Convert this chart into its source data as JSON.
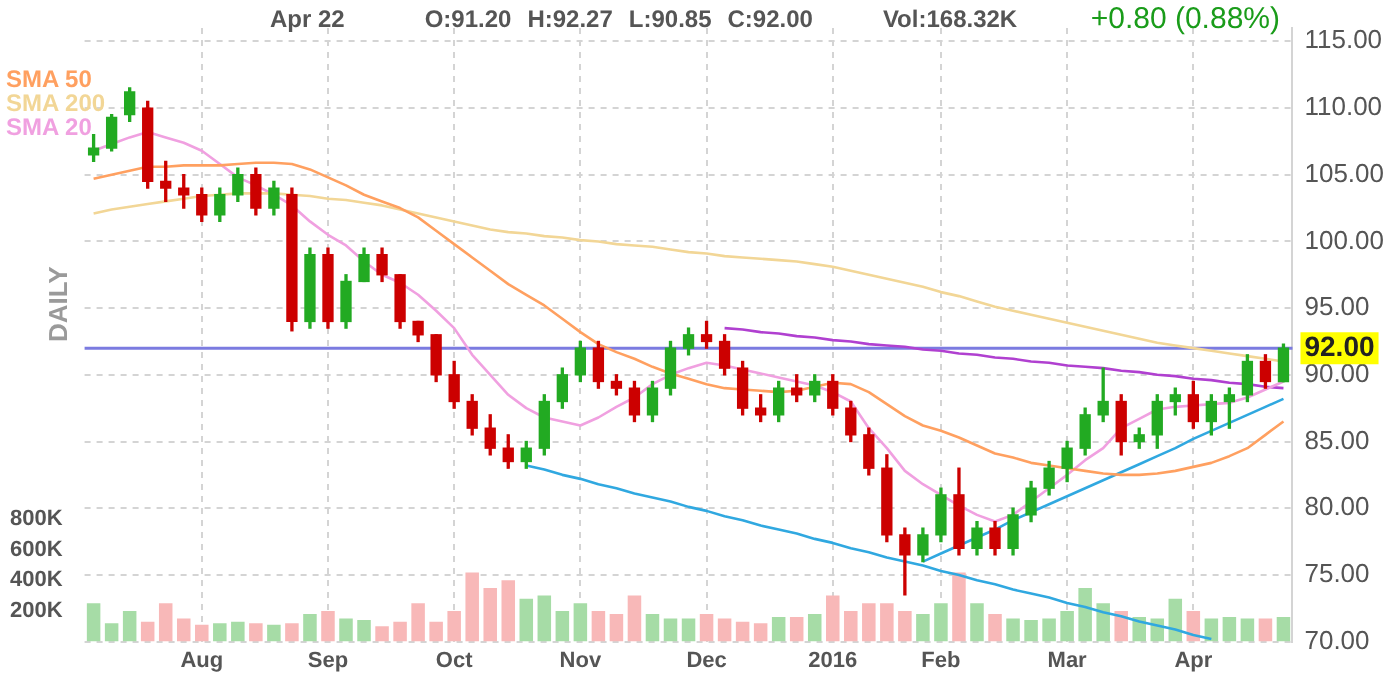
{
  "chart_data": {
    "type": "candlestick",
    "annotations": [
      "Apr 22",
      "O:91.20",
      "H:92.27",
      "L:90.85",
      "C:92.00",
      "Vol:168.32K",
      "+0.80 (0.88%)",
      "DAILY"
    ],
    "categories": [
      null,
      null,
      null,
      null,
      null,
      null,
      "Aug",
      null,
      null,
      null,
      null,
      null,
      null,
      "Sep",
      null,
      null,
      null,
      null,
      null,
      null,
      "Oct",
      null,
      null,
      null,
      null,
      null,
      null,
      "Nov",
      null,
      null,
      null,
      null,
      null,
      null,
      "Dec",
      null,
      null,
      null,
      null,
      null,
      null,
      "2016",
      null,
      null,
      null,
      null,
      null,
      "Feb",
      null,
      null,
      null,
      null,
      null,
      null,
      "Mar",
      null,
      null,
      null,
      null,
      null,
      null,
      "Apr",
      null,
      null,
      null,
      null,
      null
    ],
    "ohlc": [
      [
        106.5,
        108,
        106,
        107
      ],
      [
        107,
        109.5,
        106.8,
        109.3
      ],
      [
        109.5,
        111.5,
        109,
        111.2
      ],
      [
        110,
        110.5,
        104,
        104.5
      ],
      [
        104.5,
        106,
        103,
        104
      ],
      [
        104,
        105,
        102.5,
        103.5
      ],
      [
        103.5,
        104,
        101.5,
        102
      ],
      [
        102,
        104,
        101.5,
        103.5
      ],
      [
        103.5,
        105.5,
        103,
        105
      ],
      [
        105,
        105.5,
        102,
        102.5
      ],
      [
        102.5,
        104.5,
        102,
        104
      ],
      [
        103.5,
        104,
        93.3,
        94
      ],
      [
        94,
        99.5,
        93.5,
        99
      ],
      [
        99,
        99.5,
        93.5,
        94
      ],
      [
        94,
        97.5,
        93.5,
        97
      ],
      [
        97,
        99.5,
        97,
        99
      ],
      [
        99,
        99.5,
        97,
        97.5
      ],
      [
        97.5,
        97.5,
        93.5,
        94
      ],
      [
        94,
        94,
        92.5,
        93
      ],
      [
        93,
        93,
        89.5,
        90
      ],
      [
        90,
        91,
        87.5,
        88
      ],
      [
        88,
        88.5,
        85.5,
        86
      ],
      [
        86,
        87,
        84,
        84.5
      ],
      [
        84.5,
        85.5,
        83,
        83.5
      ],
      [
        83.5,
        85,
        83,
        84.5
      ],
      [
        84.5,
        88.5,
        84,
        88
      ],
      [
        88,
        90.5,
        87.5,
        90
      ],
      [
        90,
        92.5,
        89.5,
        92
      ],
      [
        92,
        92.5,
        89,
        89.5
      ],
      [
        89.5,
        90,
        88.5,
        89
      ],
      [
        89,
        89.5,
        86.5,
        87
      ],
      [
        87,
        89.5,
        86.5,
        89
      ],
      [
        89,
        92.5,
        88.5,
        92
      ],
      [
        92,
        93.5,
        91.5,
        93
      ],
      [
        93,
        94,
        92,
        92.5
      ],
      [
        92.5,
        93,
        90,
        90.5
      ],
      [
        90.5,
        91,
        87,
        87.5
      ],
      [
        87.5,
        88.5,
        86.5,
        87
      ],
      [
        87,
        89.5,
        86.5,
        89
      ],
      [
        89,
        90,
        88,
        88.5
      ],
      [
        88.5,
        90,
        88,
        89.5
      ],
      [
        89.5,
        90,
        87,
        87.5
      ],
      [
        87.5,
        88,
        85,
        85.5
      ],
      [
        85.5,
        86,
        82.5,
        83
      ],
      [
        83,
        84,
        77.5,
        78
      ],
      [
        78,
        78.5,
        73.5,
        76.5
      ],
      [
        76.5,
        78.5,
        76,
        78
      ],
      [
        78,
        81.5,
        77.5,
        81
      ],
      [
        81,
        83,
        76.5,
        77
      ],
      [
        77,
        79,
        76.5,
        78.5
      ],
      [
        78.5,
        79,
        76.5,
        77
      ],
      [
        77,
        80,
        76.5,
        79.5
      ],
      [
        79.5,
        82,
        79,
        81.5
      ],
      [
        81.5,
        83.5,
        81,
        83
      ],
      [
        83,
        85,
        82,
        84.5
      ],
      [
        84.5,
        87.5,
        84,
        87
      ],
      [
        87,
        90.5,
        86.5,
        88
      ],
      [
        88,
        88.5,
        84,
        85
      ],
      [
        85,
        86,
        84.5,
        85.5
      ],
      [
        85.5,
        88.5,
        84.5,
        88
      ],
      [
        88,
        89,
        87,
        88.5
      ],
      [
        88.5,
        89.5,
        86,
        86.5
      ],
      [
        86.5,
        88.5,
        85.5,
        88
      ],
      [
        88,
        89,
        86,
        88.5
      ],
      [
        88.5,
        91.5,
        88,
        91
      ],
      [
        91,
        91.5,
        89,
        89.5
      ],
      [
        89.5,
        92.3,
        89.5,
        92
      ]
    ],
    "colors": [
      "#22aa22",
      "#22aa22",
      "#22aa22",
      "#cc0000",
      "#cc0000",
      "#cc0000",
      "#cc0000",
      "#22aa22",
      "#22aa22",
      "#cc0000",
      "#22aa22",
      "#cc0000",
      "#22aa22",
      "#cc0000",
      "#22aa22",
      "#22aa22",
      "#cc0000",
      "#cc0000",
      "#cc0000",
      "#cc0000",
      "#cc0000",
      "#cc0000",
      "#cc0000",
      "#cc0000",
      "#22aa22",
      "#22aa22",
      "#22aa22",
      "#22aa22",
      "#cc0000",
      "#cc0000",
      "#cc0000",
      "#22aa22",
      "#22aa22",
      "#22aa22",
      "#cc0000",
      "#cc0000",
      "#cc0000",
      "#cc0000",
      "#22aa22",
      "#cc0000",
      "#22aa22",
      "#cc0000",
      "#cc0000",
      "#cc0000",
      "#cc0000",
      "#cc0000",
      "#22aa22",
      "#22aa22",
      "#cc0000",
      "#22aa22",
      "#cc0000",
      "#22aa22",
      "#22aa22",
      "#22aa22",
      "#22aa22",
      "#22aa22",
      "#22aa22",
      "#cc0000",
      "#22aa22",
      "#22aa22",
      "#22aa22",
      "#cc0000",
      "#22aa22",
      "#22aa22",
      "#22aa22",
      "#cc0000",
      "#22aa22"
    ],
    "series": [
      {
        "name": "SMA 50",
        "type": "line",
        "color": "#ffa060",
        "values": [
          104.7,
          105,
          105.3,
          105.6,
          105.6,
          105.7,
          105.7,
          105.7,
          105.8,
          105.9,
          105.9,
          105.8,
          105.4,
          104.8,
          104.2,
          103.5,
          103,
          102.5,
          101.8,
          100.8,
          99.8,
          98.8,
          97.8,
          96.8,
          96,
          95.2,
          94.2,
          93.2,
          92.3,
          91.7,
          91.2,
          90.6,
          90.1,
          89.7,
          89.3,
          89,
          88.9,
          88.8,
          88.7,
          88.8,
          89.1,
          89.4,
          89.3,
          88.7,
          87.8,
          86.9,
          86.2,
          85.8,
          85.3,
          84.7,
          84.1,
          83.8,
          83.4,
          83.2,
          83,
          82.8,
          82.6,
          82.5,
          82.5,
          82.6,
          82.8,
          83.1,
          83.4,
          83.9,
          84.5,
          85.5,
          86.5
        ]
      },
      {
        "name": "SMA 200",
        "type": "line",
        "color": "#f2d696",
        "values": [
          102.1,
          102.4,
          102.6,
          102.8,
          103,
          103.2,
          103.4,
          103.5,
          103.6,
          103.6,
          103.6,
          103.5,
          103.4,
          103.2,
          103.1,
          102.9,
          102.7,
          102.4,
          102.1,
          101.8,
          101.5,
          101.2,
          100.9,
          100.7,
          100.6,
          100.4,
          100.3,
          100.1,
          100,
          99.8,
          99.7,
          99.6,
          99.4,
          99.2,
          99.1,
          98.9,
          98.8,
          98.7,
          98.6,
          98.5,
          98.3,
          98.1,
          97.8,
          97.5,
          97.2,
          96.9,
          96.6,
          96.2,
          95.9,
          95.5,
          95.1,
          94.8,
          94.5,
          94.2,
          93.9,
          93.6,
          93.3,
          93,
          92.7,
          92.4,
          92.2,
          92,
          91.8,
          91.6,
          91.4,
          91.2,
          91
        ]
      },
      {
        "name": "SMA 20",
        "type": "line",
        "color": "#f0a0e0",
        "values": [
          106.8,
          107.3,
          107.8,
          108.2,
          107.8,
          107.4,
          106.8,
          105.8,
          104.8,
          104.2,
          103.5,
          102.7,
          101.5,
          100.5,
          99.7,
          98.5,
          97.5,
          96.9,
          96,
          94.8,
          93.5,
          91.5,
          90,
          88.5,
          87.5,
          86.8,
          86.5,
          86.2,
          86.8,
          87.6,
          88.3,
          89.3,
          90,
          90.5,
          90.9,
          90.7,
          90.4,
          90.1,
          89.8,
          89.5,
          89.2,
          88.7,
          88,
          86,
          84.5,
          82.8,
          81.8,
          81,
          80.2,
          79.5,
          79,
          79.5,
          80.5,
          81.5,
          82.5,
          83.6,
          84.5,
          86,
          86.7,
          87.4,
          87.6,
          87.7,
          87.8,
          87.9,
          88.3,
          88.9,
          89.5
        ]
      },
      {
        "type": "line",
        "color": "#b040d0",
        "values": [
          null,
          null,
          null,
          null,
          null,
          null,
          null,
          null,
          null,
          null,
          null,
          null,
          null,
          null,
          null,
          null,
          null,
          null,
          null,
          null,
          null,
          null,
          null,
          null,
          null,
          null,
          null,
          null,
          null,
          null,
          null,
          null,
          null,
          null,
          null,
          93.5,
          93.4,
          93.2,
          93.1,
          92.9,
          92.8,
          92.6,
          92.5,
          92.3,
          92.2,
          92.1,
          91.9,
          91.8,
          91.6,
          91.5,
          91.3,
          91.2,
          91,
          90.9,
          90.7,
          90.6,
          90.5,
          90.3,
          90.2,
          90,
          89.9,
          89.7,
          89.6,
          89.4,
          89.3,
          89.1,
          89
        ]
      },
      {
        "type": "line",
        "color": "#30a8e0",
        "values": [
          null,
          null,
          null,
          null,
          null,
          null,
          null,
          null,
          null,
          null,
          null,
          null,
          null,
          null,
          null,
          null,
          null,
          null,
          null,
          null,
          null,
          null,
          null,
          null,
          83.2,
          82.9,
          82.5,
          82.2,
          81.8,
          81.5,
          81.1,
          80.8,
          80.5,
          80.1,
          79.8,
          79.4,
          79.1,
          78.7,
          78.4,
          78.1,
          77.7,
          77.4,
          77,
          76.7,
          76.3,
          76,
          75.7,
          75.3,
          75,
          74.6,
          74.3,
          73.9,
          73.6,
          73.3,
          72.9,
          72.6,
          72.2,
          71.9,
          71.5,
          71.2,
          70.9,
          70.5,
          70.2,
          null,
          null,
          null,
          null
        ]
      },
      {
        "type": "line",
        "color": "#30a8e0",
        "values": [
          null,
          null,
          null,
          null,
          null,
          null,
          null,
          null,
          null,
          null,
          null,
          null,
          null,
          null,
          null,
          null,
          null,
          null,
          null,
          null,
          null,
          null,
          null,
          null,
          null,
          null,
          null,
          null,
          null,
          null,
          null,
          null,
          null,
          null,
          null,
          null,
          null,
          null,
          null,
          null,
          null,
          null,
          null,
          null,
          null,
          null,
          76,
          76.6,
          77.2,
          77.8,
          78.4,
          79.1,
          79.7,
          80.3,
          80.9,
          81.5,
          82.1,
          82.7,
          83.3,
          83.9,
          84.5,
          85.2,
          85.8,
          86.4,
          87,
          87.6,
          88.2
        ]
      },
      {
        "type": "bar",
        "axis": "y2",
        "colors": [
          "#a6dca6",
          "#a6dca6",
          "#a6dca6",
          "#f8b8b8",
          "#f8b8b8",
          "#f8b8b8",
          "#f8b8b8",
          "#a6dca6",
          "#a6dca6",
          "#f8b8b8",
          "#a6dca6",
          "#f8b8b8",
          "#a6dca6",
          "#f8b8b8",
          "#a6dca6",
          "#a6dca6",
          "#f8b8b8",
          "#f8b8b8",
          "#f8b8b8",
          "#f8b8b8",
          "#f8b8b8",
          "#f8b8b8",
          "#f8b8b8",
          "#f8b8b8",
          "#a6dca6",
          "#a6dca6",
          "#a6dca6",
          "#a6dca6",
          "#f8b8b8",
          "#f8b8b8",
          "#f8b8b8",
          "#a6dca6",
          "#a6dca6",
          "#a6dca6",
          "#f8b8b8",
          "#f8b8b8",
          "#f8b8b8",
          "#f8b8b8",
          "#a6dca6",
          "#f8b8b8",
          "#a6dca6",
          "#f8b8b8",
          "#f8b8b8",
          "#f8b8b8",
          "#f8b8b8",
          "#f8b8b8",
          "#a6dca6",
          "#a6dca6",
          "#f8b8b8",
          "#a6dca6",
          "#f8b8b8",
          "#a6dca6",
          "#a6dca6",
          "#a6dca6",
          "#a6dca6",
          "#a6dca6",
          "#a6dca6",
          "#f8b8b8",
          "#a6dca6",
          "#a6dca6",
          "#a6dca6",
          "#f8b8b8",
          "#a6dca6",
          "#a6dca6",
          "#a6dca6",
          "#f8b8b8",
          "#a6dca6"
        ],
        "values": [
          250,
          120,
          200,
          130,
          250,
          150,
          110,
          120,
          130,
          120,
          110,
          120,
          180,
          200,
          150,
          140,
          100,
          130,
          250,
          130,
          200,
          450,
          350,
          400,
          280,
          300,
          200,
          250,
          200,
          180,
          300,
          180,
          150,
          150,
          180,
          150,
          130,
          120,
          160,
          160,
          180,
          300,
          200,
          250,
          250,
          200,
          180,
          250,
          450,
          250,
          180,
          150,
          140,
          150,
          200,
          350,
          250,
          200,
          160,
          150,
          280,
          200,
          150,
          160,
          150,
          150,
          160
        ]
      }
    ],
    "ylim": [
      70,
      116
    ],
    "yticks": [
      {
        "value": 70,
        "label": "70.00"
      },
      {
        "value": 75,
        "label": "75.00"
      },
      {
        "value": 80,
        "label": "80.00"
      },
      {
        "value": 85,
        "label": "85.00"
      },
      {
        "value": 90,
        "label": "90.00"
      },
      {
        "value": 95,
        "label": "95.00"
      },
      {
        "value": 100,
        "label": "100.00"
      },
      {
        "value": 105,
        "label": "105.00"
      },
      {
        "value": 110,
        "label": "110.00"
      },
      {
        "value": 115,
        "label": "115.00"
      }
    ],
    "y2lim": [
      0,
      4000
    ],
    "y2ticks": [
      {
        "value": 200,
        "label": "200K"
      },
      {
        "value": 400,
        "label": "400K"
      },
      {
        "value": 600,
        "label": "600K"
      },
      {
        "value": 800,
        "label": "800K"
      }
    ],
    "ref_lines": [
      {
        "axis": "y",
        "value": 92,
        "label": "92.00",
        "color": "#7b7be0"
      }
    ],
    "grid": true,
    "legend": "top left"
  }
}
